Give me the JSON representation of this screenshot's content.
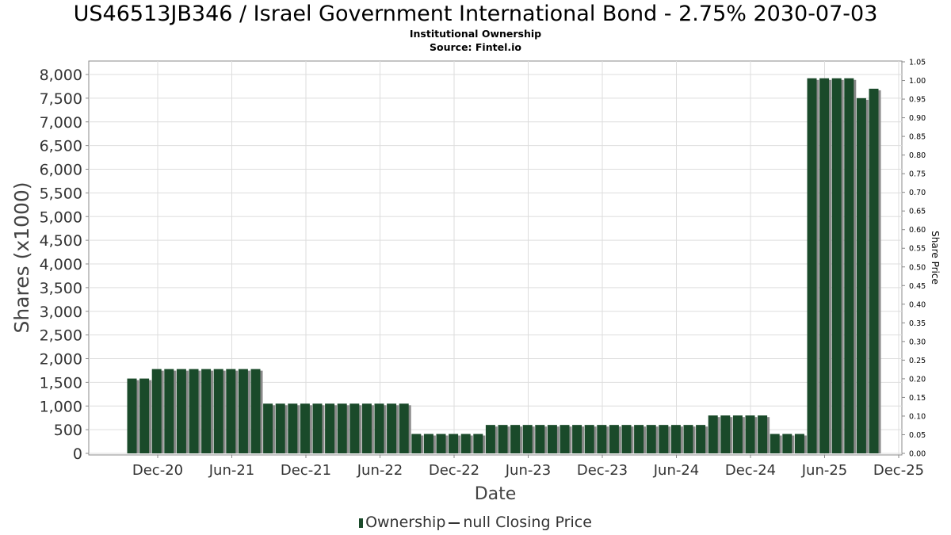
{
  "chart_data": {
    "type": "bar",
    "title": "US46513JB346 / Israel Government International Bond - 2.75% 2030-07-03",
    "subtitle": "Institutional Ownership",
    "source": "Source: Fintel.io",
    "xlabel": "Date",
    "ylabel": "Shares (x1000)",
    "y2label": "Share Price",
    "ylim": [
      0,
      8000
    ],
    "y_ticks": [
      "0",
      "500",
      "1,000",
      "1,500",
      "2,000",
      "2,500",
      "3,000",
      "3,500",
      "4,000",
      "4,500",
      "5,000",
      "5,500",
      "6,000",
      "6,500",
      "7,000",
      "7,500",
      "8,000"
    ],
    "y2lim": [
      0,
      1.05
    ],
    "y2_ticks": [
      "0.00",
      "0.05",
      "0.10",
      "0.15",
      "0.20",
      "0.25",
      "0.30",
      "0.35",
      "0.40",
      "0.45",
      "0.50",
      "0.55",
      "0.60",
      "0.65",
      "0.70",
      "0.75",
      "0.80",
      "0.85",
      "0.90",
      "0.95",
      "1.00",
      "1.05"
    ],
    "x_ticks": [
      "Dec-20",
      "Jun-21",
      "Dec-21",
      "Jun-22",
      "Dec-22",
      "Jun-23",
      "Dec-23",
      "Jun-24",
      "Dec-24",
      "Jun-25",
      "Dec-25"
    ],
    "grid": true,
    "legend_position": "bottom",
    "series": [
      {
        "name": "Ownership",
        "color": "#1a4a2a",
        "values": [
          1580,
          1580,
          1780,
          1780,
          1780,
          1780,
          1780,
          1780,
          1780,
          1780,
          1780,
          1050,
          1050,
          1050,
          1050,
          1050,
          1050,
          1050,
          1050,
          1050,
          1050,
          1050,
          1050,
          410,
          410,
          410,
          410,
          410,
          410,
          600,
          600,
          600,
          600,
          600,
          600,
          600,
          600,
          600,
          600,
          600,
          600,
          600,
          600,
          600,
          600,
          600,
          600,
          800,
          800,
          800,
          800,
          800,
          410,
          410,
          410,
          7920,
          7920,
          7920,
          7920,
          7500,
          7700
        ]
      },
      {
        "name": "null Closing Price",
        "values": []
      }
    ],
    "legend": {
      "ownership_label": "Ownership",
      "price_label": "null Closing Price"
    }
  }
}
